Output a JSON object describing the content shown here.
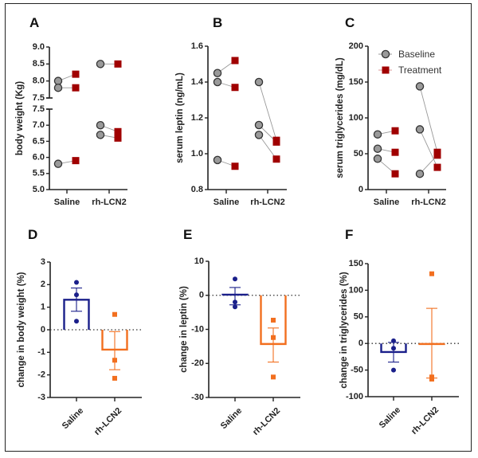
{
  "colors": {
    "baseline_fill": "#9a9a9a",
    "baseline_stroke": "#333333",
    "treatment": "#a00000",
    "saline": "#1a1f8a",
    "lcn2": "#f26f1f",
    "axis": "#222222",
    "pair_line": "#999999"
  },
  "chart_data": [
    {
      "panel": "A",
      "type": "scatter",
      "subtype": "paired",
      "ylabel": "body weight (Kg)",
      "categories": [
        "Saline",
        "rh-LCN2"
      ],
      "axis_break": true,
      "upper_segment": {
        "ylim": [
          7.5,
          9.0
        ],
        "ticks": [
          "9.0",
          "8.5",
          "8.0",
          "7.5"
        ],
        "tick_values": [
          9.0,
          8.5,
          8.0,
          7.5
        ]
      },
      "lower_segment": {
        "ylim": [
          5.0,
          7.5
        ],
        "ticks": [
          "7.5",
          "7.0",
          "6.5",
          "6.0",
          "5.5",
          "5.0"
        ],
        "tick_values": [
          7.5,
          7.0,
          6.5,
          6.0,
          5.5,
          5.0
        ]
      },
      "pairs": [
        {
          "group": "Saline",
          "baseline": 8.0,
          "treatment": 8.2
        },
        {
          "group": "Saline",
          "baseline": 7.8,
          "treatment": 7.8
        },
        {
          "group": "Saline",
          "baseline": 5.8,
          "treatment": 5.9
        },
        {
          "group": "rh-LCN2",
          "baseline": 8.5,
          "treatment": 8.5
        },
        {
          "group": "rh-LCN2",
          "baseline": 7.0,
          "treatment": 6.8
        },
        {
          "group": "rh-LCN2",
          "baseline": 6.7,
          "treatment": 6.6
        }
      ]
    },
    {
      "panel": "B",
      "type": "scatter",
      "subtype": "paired",
      "ylabel": "serum leptin (ng/mL)",
      "categories": [
        "Saline",
        "rh-LCN2"
      ],
      "ylim": [
        0.8,
        1.6
      ],
      "ticks": [
        "1.6",
        "1.4",
        "1.2",
        "1.0",
        "0.8"
      ],
      "tick_values": [
        1.6,
        1.4,
        1.2,
        1.0,
        0.8
      ],
      "pairs": [
        {
          "group": "Saline",
          "baseline": 1.45,
          "treatment": 1.52
        },
        {
          "group": "Saline",
          "baseline": 1.4,
          "treatment": 1.37
        },
        {
          "group": "Saline",
          "baseline": 0.965,
          "treatment": 0.93
        },
        {
          "group": "rh-LCN2",
          "baseline": 1.4,
          "treatment": 1.075
        },
        {
          "group": "rh-LCN2",
          "baseline": 1.16,
          "treatment": 1.065
        },
        {
          "group": "rh-LCN2",
          "baseline": 1.105,
          "treatment": 0.97
        }
      ]
    },
    {
      "panel": "C",
      "type": "scatter",
      "subtype": "paired",
      "ylabel": "serum triglycerides (mg/dL)",
      "categories": [
        "Saline",
        "rh-LCN2"
      ],
      "ylim": [
        0,
        200
      ],
      "ticks": [
        "200",
        "150",
        "100",
        "50",
        "0"
      ],
      "tick_values": [
        200,
        150,
        100,
        50,
        0
      ],
      "legend": {
        "position": "top-right",
        "entries": [
          "Baseline",
          "Treatment"
        ]
      },
      "pairs": [
        {
          "group": "Saline",
          "baseline": 77,
          "treatment": 82
        },
        {
          "group": "Saline",
          "baseline": 57,
          "treatment": 52
        },
        {
          "group": "Saline",
          "baseline": 43,
          "treatment": 22
        },
        {
          "group": "rh-LCN2",
          "baseline": 144,
          "treatment": 52
        },
        {
          "group": "rh-LCN2",
          "baseline": 84,
          "treatment": 31
        },
        {
          "group": "rh-LCN2",
          "baseline": 22,
          "treatment": 48
        }
      ]
    },
    {
      "panel": "D",
      "type": "bar",
      "ylabel": "change in body weight (%)",
      "categories": [
        "Saline",
        "rh-LCN2"
      ],
      "ylim": [
        -3,
        3
      ],
      "ticks": [
        "3",
        "2",
        "1",
        "0",
        "-1",
        "-2",
        "-3"
      ],
      "tick_values": [
        3,
        2,
        1,
        0,
        -1,
        -2,
        -3
      ],
      "bars": [
        {
          "group": "Saline",
          "mean": 1.33,
          "err_low": 0.82,
          "err_high": 1.85,
          "points": [
            2.1,
            1.55,
            0.38
          ]
        },
        {
          "group": "rh-LCN2",
          "mean": -0.88,
          "err_low": -1.77,
          "err_high": -0.08,
          "points": [
            0.68,
            -1.35,
            -2.15
          ]
        }
      ]
    },
    {
      "panel": "E",
      "type": "bar",
      "ylabel": "change in leptin (%)",
      "categories": [
        "Saline",
        "rh-LCN2"
      ],
      "ylim": [
        -30,
        10
      ],
      "ticks": [
        "10",
        "0",
        "-10",
        "-20",
        "-30"
      ],
      "tick_values": [
        10,
        0,
        -10,
        -20,
        -30
      ],
      "bars": [
        {
          "group": "Saline",
          "mean": 0.2,
          "err_low": -2.8,
          "err_high": 2.3,
          "points": [
            4.8,
            -2.0,
            -3.4
          ]
        },
        {
          "group": "rh-LCN2",
          "mean": -14.3,
          "err_low": -19.6,
          "err_high": -9.6,
          "points": [
            -7.3,
            -12.4,
            -24.0
          ]
        }
      ]
    },
    {
      "panel": "F",
      "type": "bar",
      "ylabel": "change in triglycerides (%)",
      "categories": [
        "Saline",
        "rh-LCN2"
      ],
      "ylim": [
        -100,
        150
      ],
      "ticks": [
        "150",
        "100",
        "50",
        "0",
        "-50",
        "-100"
      ],
      "tick_values": [
        150,
        100,
        50,
        0,
        -50,
        -100
      ],
      "bars": [
        {
          "group": "Saline",
          "mean": -16,
          "err_low": -35,
          "err_high": 2,
          "points": [
            5,
            -9,
            -50
          ]
        },
        {
          "group": "rh-LCN2",
          "mean": -1,
          "err_low": -65,
          "err_high": 66,
          "points": [
            131,
            -67,
            -63
          ]
        }
      ]
    }
  ]
}
